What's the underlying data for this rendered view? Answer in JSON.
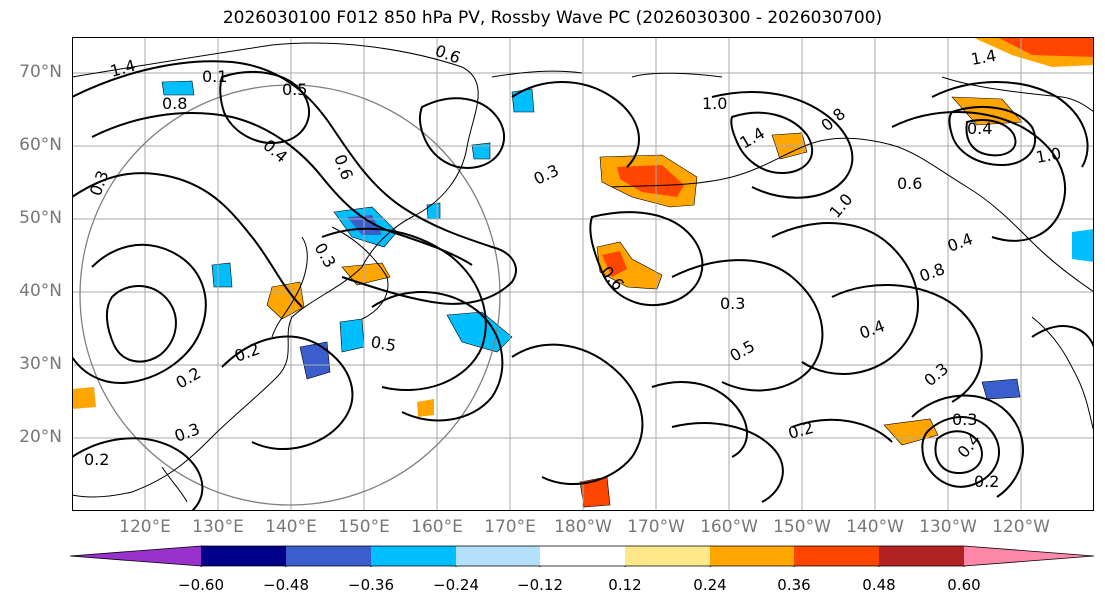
{
  "title": "2026030100 F012 850 hPa PV, Rossby Wave PC (2026030300 - 2026030700)",
  "lat_labels": [
    "70°N",
    "60°N",
    "50°N",
    "40°N",
    "30°N",
    "20°N"
  ],
  "lon_labels": [
    "120°E",
    "130°E",
    "140°E",
    "150°E",
    "160°E",
    "170°E",
    "180°W",
    "170°W",
    "160°W",
    "150°W",
    "140°W",
    "130°W",
    "120°W"
  ],
  "contour_labels": [
    "0.6",
    "1.4",
    "0.1",
    "0.5",
    "0.8",
    "0.4",
    "0.6",
    "0.3",
    "0.3",
    "0.2",
    "0.5",
    "0.3",
    "1.0",
    "0.8",
    "1.4",
    "0.6",
    "1.0",
    "0.6",
    "0.4",
    "0.8",
    "0.3",
    "0.5",
    "0.4",
    "0.3",
    "0.2",
    "0.3",
    "0.4",
    "0.2",
    "0.4",
    "1.0",
    "1.4",
    "0.2",
    "0.3",
    "0.2"
  ],
  "colorbar": {
    "tick_labels": [
      "−0.60",
      "−0.48",
      "−0.36",
      "−0.24",
      "−0.12",
      "0.12",
      "0.24",
      "0.36",
      "0.48",
      "0.60"
    ],
    "colors": [
      "#9932cc",
      "#00008b",
      "#3a5fcd",
      "#00bfff",
      "#b3e0fb",
      "#ffffff",
      "#ffe88a",
      "#ffa500",
      "#ff4500",
      "#b22222",
      "#ff88aa"
    ]
  },
  "colors": {
    "grid": "#aaaaaa",
    "contour": "#000000",
    "coast": "#000000",
    "circle": "#808080"
  }
}
